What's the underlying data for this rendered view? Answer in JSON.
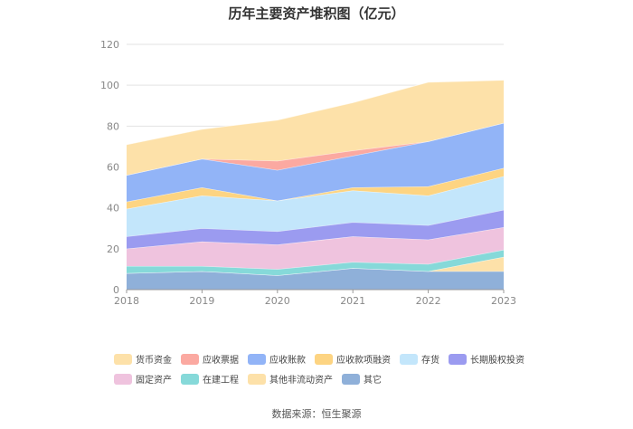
{
  "chart_data": {
    "type": "area",
    "stacked": true,
    "title": "历年主要资产堆积图（亿元）",
    "xlabel": "",
    "ylabel": "",
    "ylim": [
      0,
      120
    ],
    "yticks": [
      0,
      20,
      40,
      60,
      80,
      100,
      120
    ],
    "categories": [
      "2018",
      "2019",
      "2020",
      "2021",
      "2022",
      "2023"
    ],
    "legend_position": "bottom",
    "series": [
      {
        "name": "其它",
        "color": "#8fb0d9",
        "values": [
          8,
          9,
          7,
          10.5,
          9,
          9
        ]
      },
      {
        "name": "其他非流动资产",
        "color": "#fde1a9",
        "values": [
          0,
          0,
          0,
          0,
          0,
          7
        ]
      },
      {
        "name": "在建工程",
        "color": "#86d9d9",
        "values": [
          3.5,
          2.5,
          3,
          3,
          3.5,
          3.5
        ]
      },
      {
        "name": "固定资产",
        "color": "#efc3de",
        "values": [
          8.5,
          12,
          12,
          12.5,
          12,
          11
        ]
      },
      {
        "name": "长期股权投资",
        "color": "#9b9bf0",
        "values": [
          6,
          6.5,
          6.5,
          7,
          7,
          8.5
        ]
      },
      {
        "name": "存货",
        "color": "#c3e6fb",
        "values": [
          13.5,
          16,
          15,
          15.5,
          14.5,
          16.5
        ]
      },
      {
        "name": "应收款项融资",
        "color": "#fdd482",
        "values": [
          3.5,
          4,
          0,
          1.5,
          4.5,
          4
        ]
      },
      {
        "name": "应收账款",
        "color": "#92b4f7",
        "values": [
          13,
          14,
          15,
          15.5,
          22,
          22
        ]
      },
      {
        "name": "应收票据",
        "color": "#fba9a1",
        "values": [
          0,
          0,
          4.5,
          2.5,
          0,
          0
        ]
      },
      {
        "name": "货币资金",
        "color": "#fde1a9",
        "values": [
          15,
          14.5,
          20,
          23.5,
          29,
          21
        ]
      }
    ],
    "legend_order": [
      "货币资金",
      "应收票据",
      "应收账款",
      "应收款项融资",
      "存货",
      "长期股权投资",
      "固定资产",
      "在建工程",
      "其他非流动资产",
      "其它"
    ]
  },
  "source_text": "数据来源：恒生聚源"
}
